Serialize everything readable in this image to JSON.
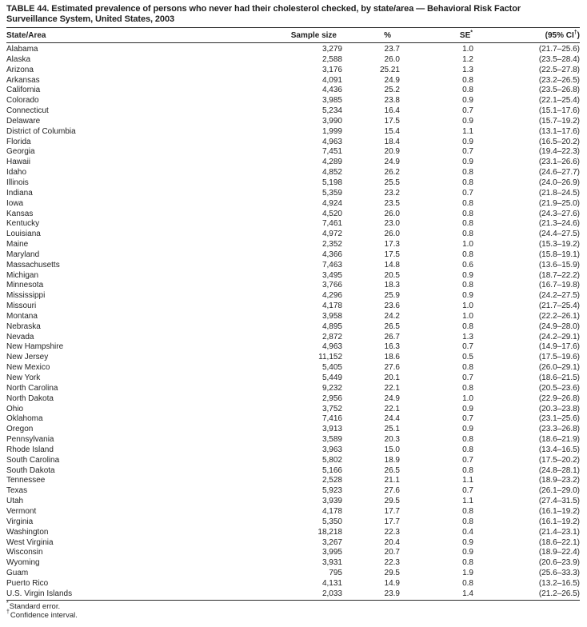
{
  "title": {
    "line1": "TABLE 44. Estimated prevalence of persons who never had their cholesterol checked, by state/area — Behavioral Risk Factor",
    "line2": "Surveillance System, United States, 2003"
  },
  "table": {
    "header": {
      "state": "State/Area",
      "sample": "Sample size",
      "percent": "%",
      "se_base": "SE",
      "se_marker": "*",
      "ci_prefix": "(95% CI",
      "ci_marker": "†",
      "ci_suffix": ")"
    },
    "rows": [
      [
        "Alabama",
        "3,279",
        "23.7",
        "1.0",
        "(21.7–25.6)"
      ],
      [
        "Alaska",
        "2,588",
        "26.0",
        "1.2",
        "(23.5–28.4)"
      ],
      [
        "Arizona",
        "3,176",
        "25.21",
        "1.3",
        "(22.5–27.8)"
      ],
      [
        "Arkansas",
        "4,091",
        "24.9",
        "0.8",
        "(23.2–26.5)"
      ],
      [
        "California",
        "4,436",
        "25.2",
        "0.8",
        "(23.5–26.8)"
      ],
      [
        "Colorado",
        "3,985",
        "23.8",
        "0.9",
        "(22.1–25.4)"
      ],
      [
        "Connecticut",
        "5,234",
        "16.4",
        "0.7",
        "(15.1–17.6)"
      ],
      [
        "Delaware",
        "3,990",
        "17.5",
        "0.9",
        "(15.7–19.2)"
      ],
      [
        "District of Columbia",
        "1,999",
        "15.4",
        "1.1",
        "(13.1–17.6)"
      ],
      [
        "Florida",
        "4,963",
        "18.4",
        "0.9",
        "(16.5–20.2)"
      ],
      [
        "Georgia",
        "7,451",
        "20.9",
        "0.7",
        "(19.4–22.3)"
      ],
      [
        "Hawaii",
        "4,289",
        "24.9",
        "0.9",
        "(23.1–26.6)"
      ],
      [
        "Idaho",
        "4,852",
        "26.2",
        "0.8",
        "(24.6–27.7)"
      ],
      [
        "Illinois",
        "5,198",
        "25.5",
        "0.8",
        "(24.0–26.9)"
      ],
      [
        "Indiana",
        "5,359",
        "23.2",
        "0.7",
        "(21.8–24.5)"
      ],
      [
        "Iowa",
        "4,924",
        "23.5",
        "0.8",
        "(21.9–25.0)"
      ],
      [
        "Kansas",
        "4,520",
        "26.0",
        "0.8",
        "(24.3–27.6)"
      ],
      [
        "Kentucky",
        "7,461",
        "23.0",
        "0.8",
        "(21.3–24.6)"
      ],
      [
        "Louisiana",
        "4,972",
        "26.0",
        "0.8",
        "(24.4–27.5)"
      ],
      [
        "Maine",
        "2,352",
        "17.3",
        "1.0",
        "(15.3–19.2)"
      ],
      [
        "Maryland",
        "4,366",
        "17.5",
        "0.8",
        "(15.8–19.1)"
      ],
      [
        "Massachusetts",
        "7,463",
        "14.8",
        "0.6",
        "(13.6–15.9)"
      ],
      [
        "Michigan",
        "3,495",
        "20.5",
        "0.9",
        "(18.7–22.2)"
      ],
      [
        "Minnesota",
        "3,766",
        "18.3",
        "0.8",
        "(16.7–19.8)"
      ],
      [
        "Mississippi",
        "4,296",
        "25.9",
        "0.9",
        "(24.2–27.5)"
      ],
      [
        "Missouri",
        "4,178",
        "23.6",
        "1.0",
        "(21.7–25.4)"
      ],
      [
        "Montana",
        "3,958",
        "24.2",
        "1.0",
        "(22.2–26.1)"
      ],
      [
        "Nebraska",
        "4,895",
        "26.5",
        "0.8",
        "(24.9–28.0)"
      ],
      [
        "Nevada",
        "2,872",
        "26.7",
        "1.3",
        "(24.2–29.1)"
      ],
      [
        "New Hampshire",
        "4,963",
        "16.3",
        "0.7",
        "(14.9–17.6)"
      ],
      [
        "New Jersey",
        "11,152",
        "18.6",
        "0.5",
        "(17.5–19.6)"
      ],
      [
        "New Mexico",
        "5,405",
        "27.6",
        "0.8",
        "(26.0–29.1)"
      ],
      [
        "New York",
        "5,449",
        "20.1",
        "0.7",
        "(18.6–21.5)"
      ],
      [
        "North Carolina",
        "9,232",
        "22.1",
        "0.8",
        "(20.5–23.6)"
      ],
      [
        "North Dakota",
        "2,956",
        "24.9",
        "1.0",
        "(22.9–26.8)"
      ],
      [
        "Ohio",
        "3,752",
        "22.1",
        "0.9",
        "(20.3–23.8)"
      ],
      [
        "Oklahoma",
        "7,416",
        "24.4",
        "0.7",
        "(23.1–25.6)"
      ],
      [
        "Oregon",
        "3,913",
        "25.1",
        "0.9",
        "(23.3–26.8)"
      ],
      [
        "Pennsylvania",
        "3,589",
        "20.3",
        "0.8",
        "(18.6–21.9)"
      ],
      [
        "Rhode Island",
        "3,963",
        "15.0",
        "0.8",
        "(13.4–16.5)"
      ],
      [
        "South Carolina",
        "5,802",
        "18.9",
        "0.7",
        "(17.5–20.2)"
      ],
      [
        "South Dakota",
        "5,166",
        "26.5",
        "0.8",
        "(24.8–28.1)"
      ],
      [
        "Tennessee",
        "2,528",
        "21.1",
        "1.1",
        "(18.9–23.2)"
      ],
      [
        "Texas",
        "5,923",
        "27.6",
        "0.7",
        "(26.1–29.0)"
      ],
      [
        "Utah",
        "3,939",
        "29.5",
        "1.1",
        "(27.4–31.5)"
      ],
      [
        "Vermont",
        "4,178",
        "17.7",
        "0.8",
        "(16.1–19.2)"
      ],
      [
        "Virginia",
        "5,350",
        "17.7",
        "0.8",
        "(16.1–19.2)"
      ],
      [
        "Washington",
        "18,218",
        "22.3",
        "0.4",
        "(21.4–23.1)"
      ],
      [
        "West Virginia",
        "3,267",
        "20.4",
        "0.9",
        "(18.6–22.1)"
      ],
      [
        "Wisconsin",
        "3,995",
        "20.7",
        "0.9",
        "(18.9–22.4)"
      ],
      [
        "Wyoming",
        "3,931",
        "22.3",
        "0.8",
        "(20.6–23.9)"
      ],
      [
        "Guam",
        "795",
        "29.5",
        "1.9",
        "(25.6–33.3)"
      ],
      [
        "Puerto Rico",
        "4,131",
        "14.9",
        "0.8",
        "(13.2–16.5)"
      ],
      [
        "U.S. Virgin Islands",
        "2,033",
        "23.9",
        "1.4",
        "(21.2–26.5)"
      ]
    ]
  },
  "footnotes": [
    {
      "marker": "*",
      "text": "Standard error."
    },
    {
      "marker": "†",
      "text": "Confidence interval."
    }
  ]
}
